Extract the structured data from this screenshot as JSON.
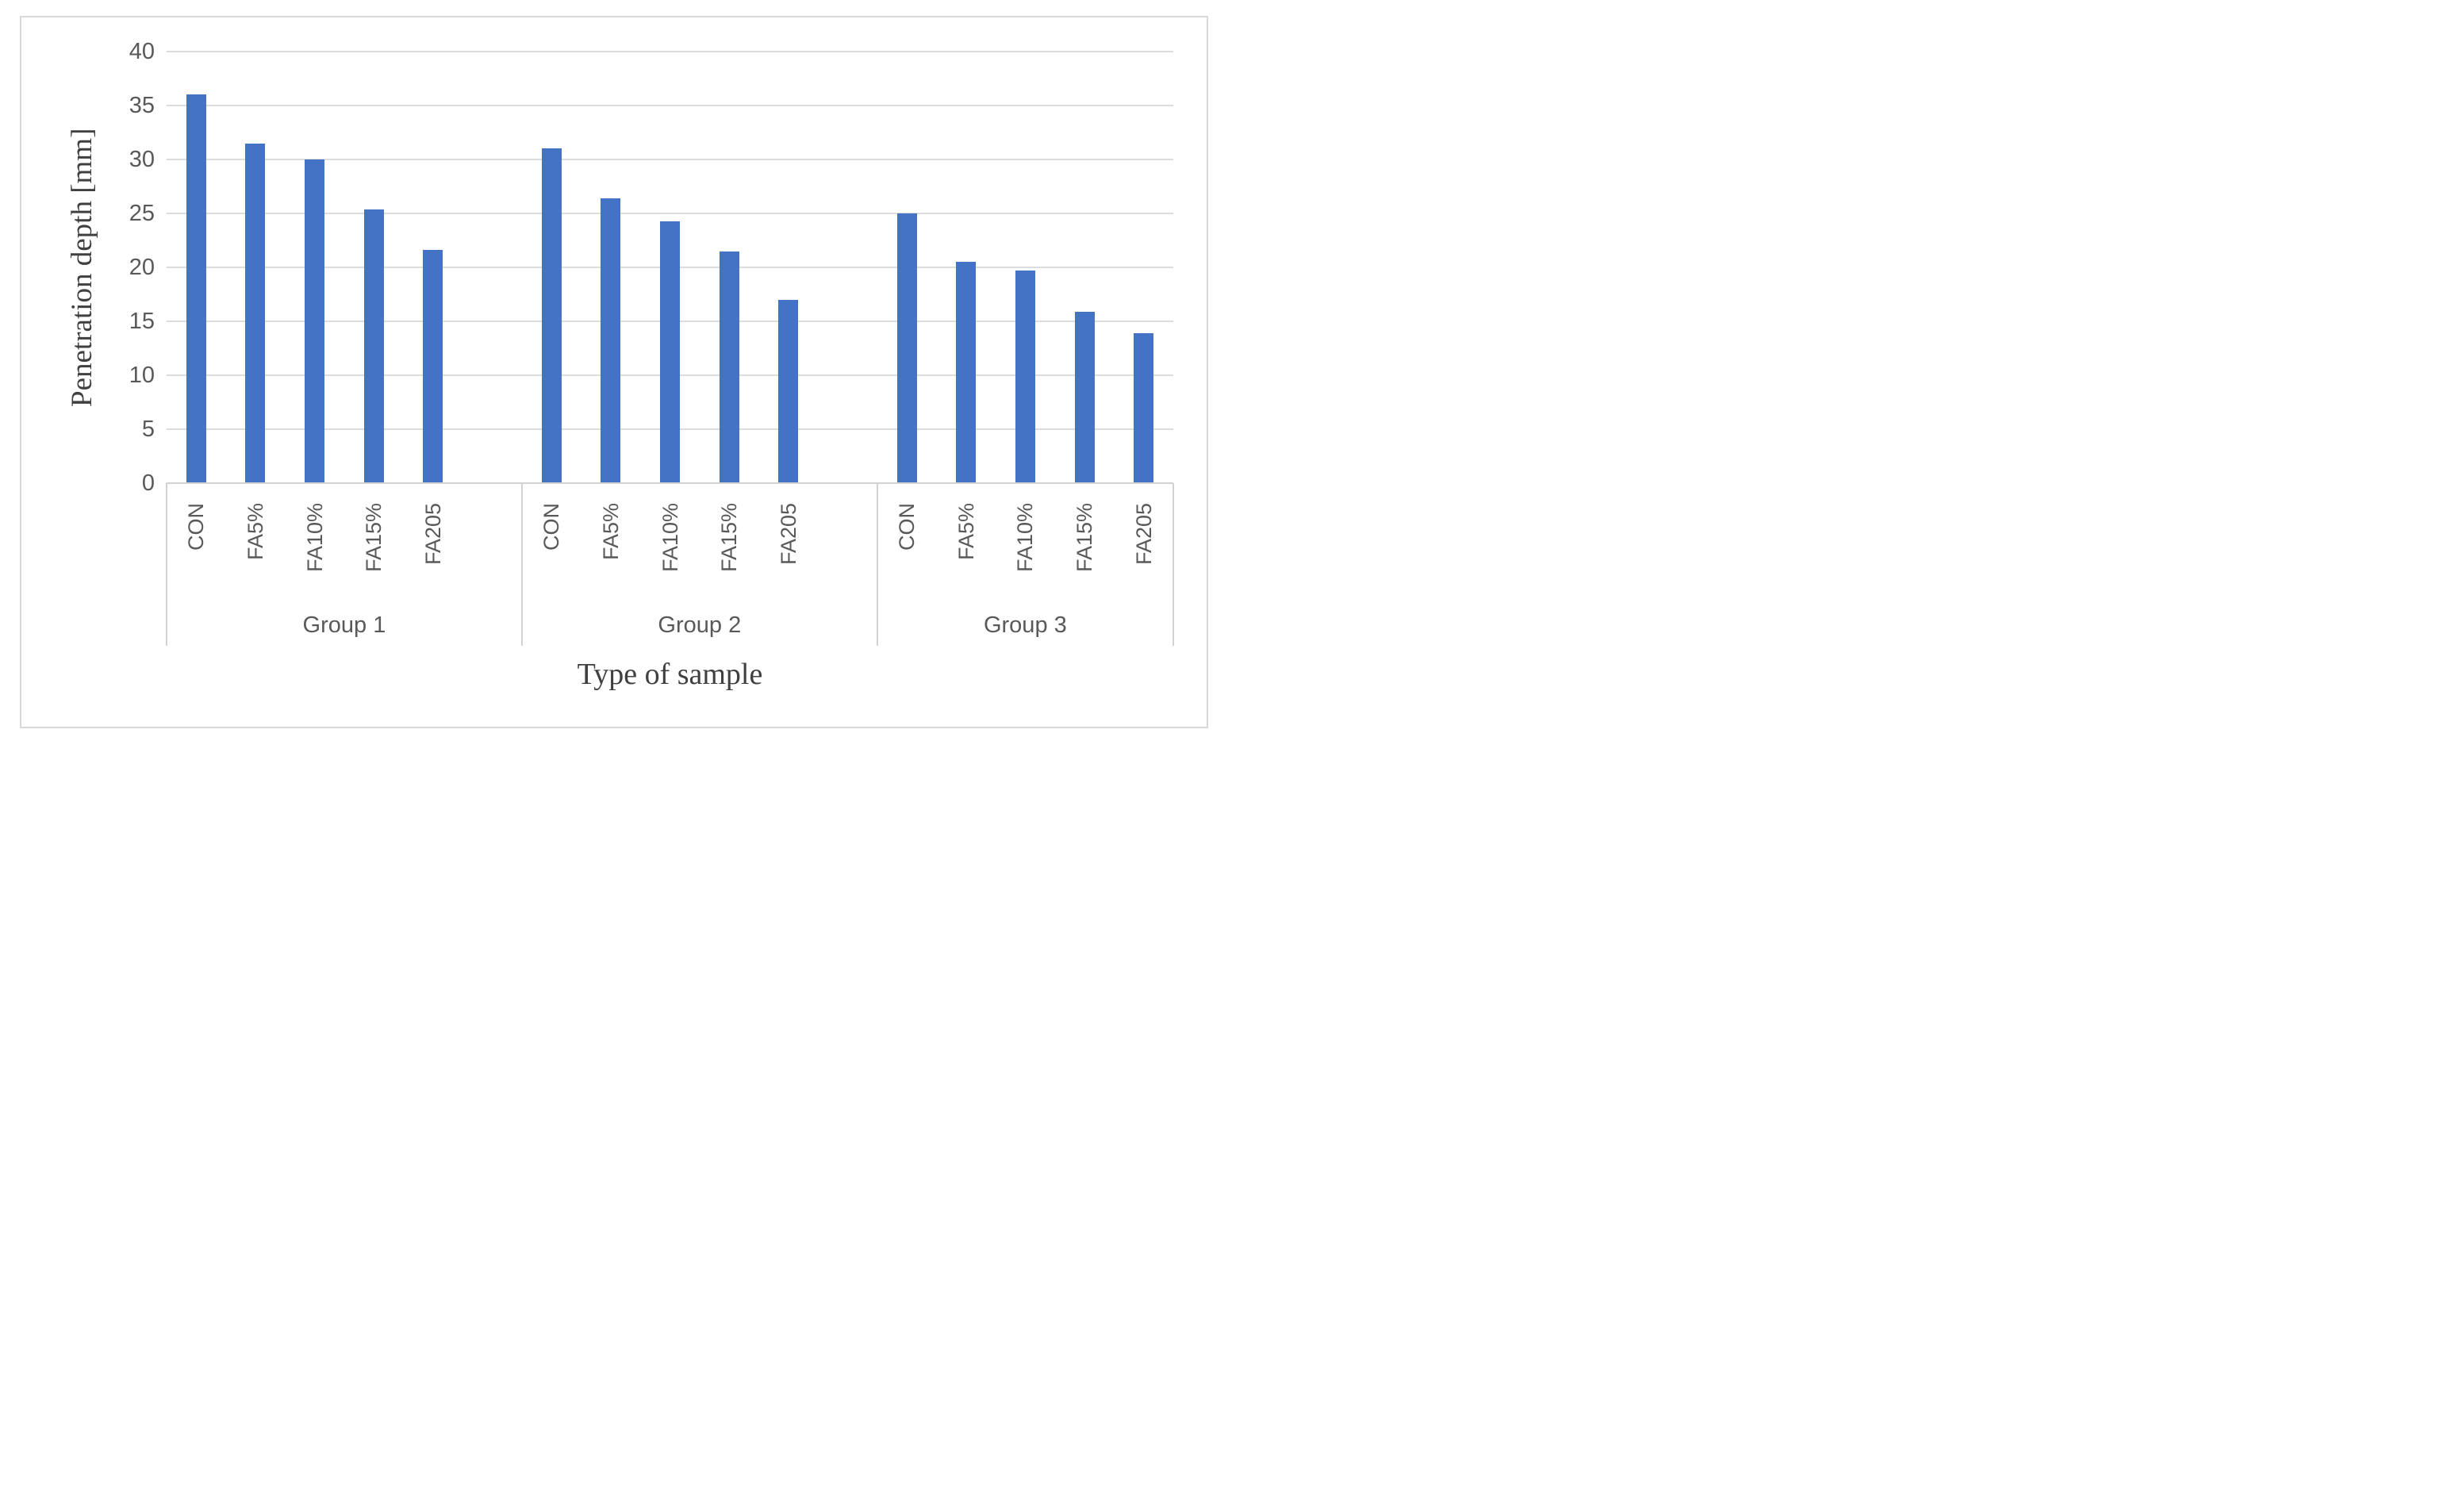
{
  "chart_data": {
    "type": "bar",
    "title": "",
    "xlabel": "Type of sample",
    "ylabel": "Penetration depth [mm]",
    "ylim": [
      0,
      40
    ],
    "yticks": [
      0,
      5,
      10,
      15,
      20,
      25,
      30,
      35,
      40
    ],
    "grid": true,
    "legend": false,
    "bar_color": "#4472C4",
    "categories": [
      "CON",
      "FA5%",
      "FA10%",
      "FA15%",
      "FA205"
    ],
    "series": [
      {
        "name": "Group 1",
        "values": [
          36.0,
          31.5,
          30.0,
          25.4,
          21.6
        ]
      },
      {
        "name": "Group 2",
        "values": [
          31.0,
          26.4,
          24.3,
          21.5,
          17.0
        ]
      },
      {
        "name": "Group 3",
        "values": [
          25.0,
          20.5,
          19.7,
          15.9,
          13.9
        ]
      }
    ],
    "group_labels": [
      "Group 1",
      "Group 2",
      "Group 3"
    ]
  },
  "colors": {
    "bar": "#4472C4",
    "gridline": "#DCDCDC",
    "axis": "#D2D2D2",
    "label_text": "#595959",
    "title_text": "#404040",
    "frame": "#D9D9D9"
  }
}
